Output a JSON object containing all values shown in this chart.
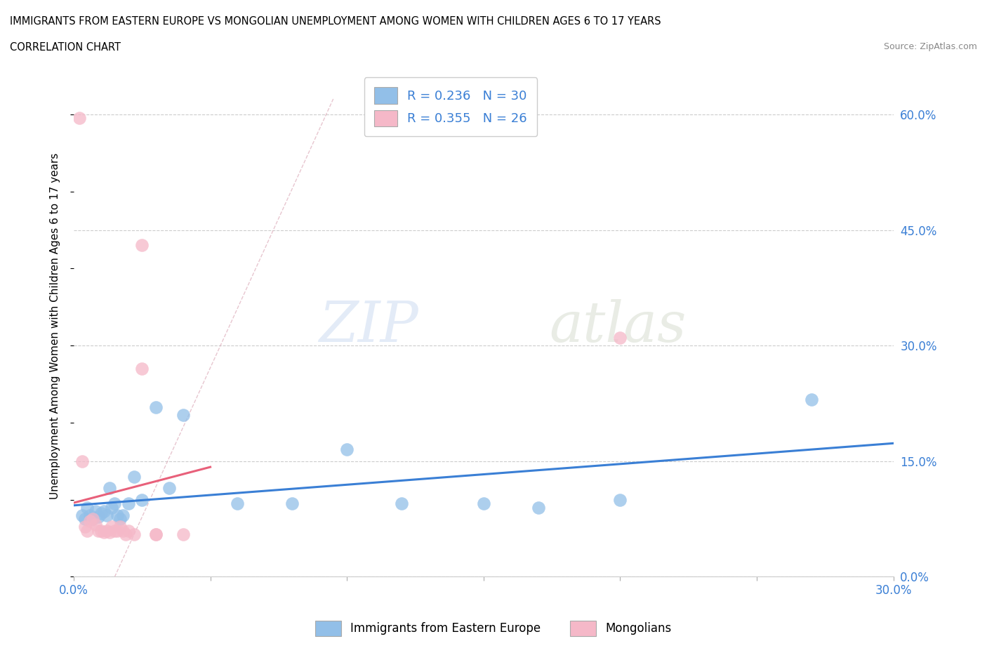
{
  "title_line1": "IMMIGRANTS FROM EASTERN EUROPE VS MONGOLIAN UNEMPLOYMENT AMONG WOMEN WITH CHILDREN AGES 6 TO 17 YEARS",
  "title_line2": "CORRELATION CHART",
  "source_text": "Source: ZipAtlas.com",
  "ylabel": "Unemployment Among Women with Children Ages 6 to 17 years",
  "xlim": [
    0.0,
    0.3
  ],
  "ylim": [
    0.0,
    0.65
  ],
  "x_ticks": [
    0.0,
    0.05,
    0.1,
    0.15,
    0.2,
    0.25,
    0.3
  ],
  "x_tick_labels": [
    "0.0%",
    "",
    "",
    "",
    "",
    "",
    "30.0%"
  ],
  "y_ticks": [
    0.0,
    0.15,
    0.3,
    0.45,
    0.6
  ],
  "y_tick_labels_right": [
    "0.0%",
    "15.0%",
    "30.0%",
    "45.0%",
    "60.0%"
  ],
  "grid_color": "#cccccc",
  "background_color": "#ffffff",
  "watermark_zip": "ZIP",
  "watermark_atlas": "atlas",
  "blue_color": "#92bfe8",
  "pink_color": "#f5b8c8",
  "blue_line_color": "#3a7fd5",
  "pink_line_color": "#e8607a",
  "blue_scatter_x": [
    0.003,
    0.004,
    0.005,
    0.006,
    0.007,
    0.008,
    0.009,
    0.01,
    0.011,
    0.012,
    0.013,
    0.014,
    0.015,
    0.016,
    0.017,
    0.018,
    0.02,
    0.022,
    0.025,
    0.03,
    0.035,
    0.04,
    0.06,
    0.08,
    0.1,
    0.12,
    0.15,
    0.17,
    0.2,
    0.27
  ],
  "blue_scatter_y": [
    0.08,
    0.075,
    0.09,
    0.08,
    0.075,
    0.085,
    0.078,
    0.082,
    0.085,
    0.08,
    0.115,
    0.09,
    0.095,
    0.08,
    0.075,
    0.08,
    0.095,
    0.13,
    0.1,
    0.22,
    0.115,
    0.21,
    0.095,
    0.095,
    0.165,
    0.095,
    0.095,
    0.09,
    0.1,
    0.23
  ],
  "pink_scatter_x": [
    0.002,
    0.003,
    0.004,
    0.005,
    0.006,
    0.007,
    0.008,
    0.009,
    0.01,
    0.011,
    0.012,
    0.013,
    0.014,
    0.015,
    0.016,
    0.017,
    0.018,
    0.019,
    0.02,
    0.022,
    0.025,
    0.025,
    0.03,
    0.03,
    0.04,
    0.2
  ],
  "pink_scatter_y": [
    0.595,
    0.15,
    0.065,
    0.06,
    0.072,
    0.075,
    0.068,
    0.06,
    0.06,
    0.058,
    0.06,
    0.058,
    0.065,
    0.06,
    0.06,
    0.065,
    0.06,
    0.055,
    0.06,
    0.055,
    0.43,
    0.27,
    0.055,
    0.055,
    0.055,
    0.31
  ],
  "legend_color_blue": "#92bfe8",
  "legend_color_pink": "#f5b8c8",
  "bottom_legend_blue": "Immigrants from Eastern Europe",
  "bottom_legend_pink": "Mongolians",
  "legend_R1": "R = 0.236",
  "legend_N1": "N = 30",
  "legend_R2": "R = 0.355",
  "legend_N2": "N = 26"
}
